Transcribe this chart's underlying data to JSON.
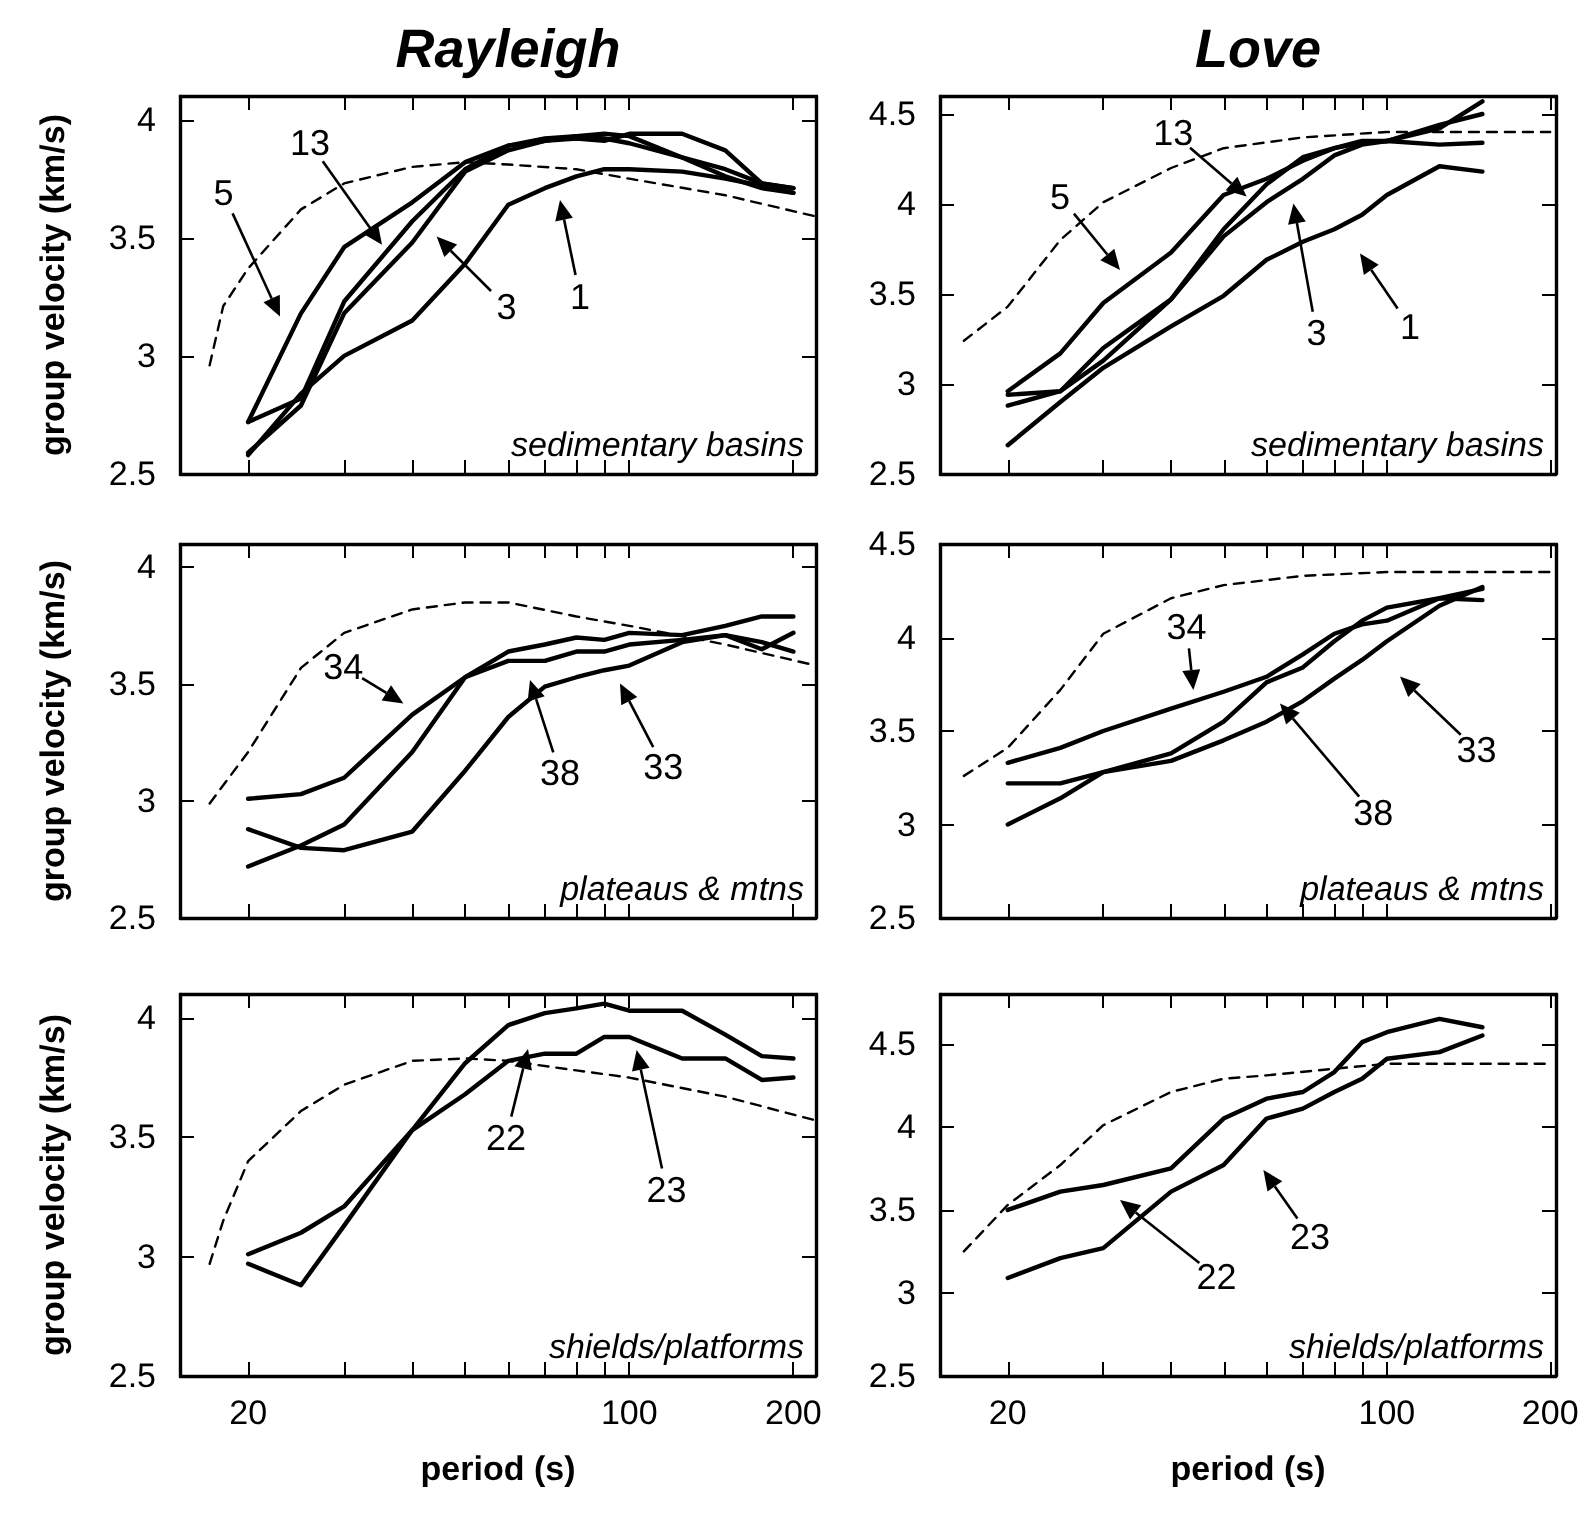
{
  "chart_data": [
    {
      "type": "line",
      "title": "Rayleigh",
      "ylabel": "group velocity (km/s)",
      "log": "x",
      "tick_labels": "y",
      "xlim": [
        15,
        220
      ],
      "ylim": [
        2.5,
        4.1
      ],
      "xticks": [
        {
          "value": 20,
          "label": null
        },
        {
          "value": 30,
          "label": null
        },
        {
          "value": 40,
          "label": null
        },
        {
          "value": 50,
          "label": null
        },
        {
          "value": 60,
          "label": null
        },
        {
          "value": 70,
          "label": null
        },
        {
          "value": 80,
          "label": null
        },
        {
          "value": 90,
          "label": null
        },
        {
          "value": 100,
          "label": null
        },
        {
          "value": 200,
          "label": null
        }
      ],
      "yticks": [
        2.5,
        3,
        3.5,
        4
      ],
      "x": [
        20,
        25,
        30,
        40,
        50,
        60,
        70,
        80,
        90,
        100,
        125,
        150,
        175,
        200
      ],
      "series": [
        {
          "color": "#000000",
          "values": [
            2.72,
            3.18,
            3.46,
            3.65,
            3.82,
            3.89,
            3.91,
            3.93,
            3.92,
            3.9,
            3.84,
            3.79,
            3.73,
            3.71
          ]
        },
        {
          "color": "#000000",
          "values": [
            2.72,
            2.82,
            3.23,
            3.57,
            3.79,
            3.89,
            3.92,
            3.93,
            3.94,
            3.93,
            3.84,
            3.76,
            3.71,
            3.69
          ]
        },
        {
          "color": "#000000",
          "values": [
            2.59,
            2.79,
            3.18,
            3.48,
            3.78,
            3.87,
            3.91,
            3.92,
            3.91,
            3.94,
            3.94,
            3.87,
            3.73,
            3.71
          ]
        },
        {
          "color": "#000000",
          "values": [
            2.58,
            2.84,
            3.0,
            3.15,
            3.39,
            3.64,
            3.71,
            3.76,
            3.79,
            3.79,
            3.78,
            3.75,
            3.72,
            3.69
          ]
        },
        {
          "color": "#000000",
          "line_style": "dashed",
          "x": [
            17,
            18,
            20,
            25,
            30,
            40,
            50,
            60,
            80,
            100,
            150,
            220
          ],
          "values": [
            2.96,
            3.21,
            3.37,
            3.62,
            3.73,
            3.8,
            3.82,
            3.81,
            3.79,
            3.75,
            3.68,
            3.59
          ]
        }
      ],
      "annotations": [
        "5",
        {
          "text": "13",
          "x": 35.2,
          "y": 3.47
        },
        "3",
        "1",
        "sedimentary basins"
      ]
    },
    {
      "type": "line",
      "title": "Love",
      "log": "x",
      "tick_labels": "y",
      "xlim": [
        15,
        205
      ],
      "ylim": [
        2.5,
        4.6
      ],
      "xticks": [
        {
          "value": 20,
          "label": null
        },
        {
          "value": 30,
          "label": null
        },
        {
          "value": 40,
          "label": null
        },
        {
          "value": 50,
          "label": null
        },
        {
          "value": 60,
          "label": null
        },
        {
          "value": 70,
          "label": null
        },
        {
          "value": 80,
          "label": null
        },
        {
          "value": 90,
          "label": null
        },
        {
          "value": 100,
          "label": null
        },
        {
          "value": 200,
          "label": null
        }
      ],
      "yticks": [
        2.5,
        3,
        3.5,
        4,
        4.5
      ],
      "x": [
        20,
        25,
        30,
        40,
        50,
        60,
        70,
        80,
        90,
        100,
        125,
        150
      ],
      "series": [
        {
          "color": "#000000",
          "values": [
            2.96,
            3.17,
            3.45,
            3.73,
            4.05,
            4.14,
            4.24,
            4.31,
            4.34,
            4.35,
            4.33,
            4.34
          ]
        },
        {
          "color": "#000000",
          "values": [
            2.94,
            2.96,
            3.2,
            3.47,
            3.86,
            4.11,
            4.26,
            4.31,
            4.35,
            4.35,
            4.42,
            4.57
          ]
        },
        {
          "color": "#000000",
          "values": [
            2.88,
            2.96,
            3.13,
            3.47,
            3.82,
            4.01,
            4.14,
            4.27,
            4.33,
            4.35,
            4.44,
            4.5
          ]
        },
        {
          "color": "#000000",
          "values": [
            2.66,
            2.9,
            3.09,
            3.32,
            3.49,
            3.69,
            3.79,
            3.86,
            3.94,
            4.05,
            4.21,
            4.18
          ]
        },
        {
          "color": "#000000",
          "line_style": "dashed",
          "x": [
            16.6,
            20,
            25,
            30,
            40,
            50,
            70,
            100,
            200
          ],
          "values": [
            3.24,
            3.43,
            3.8,
            4.01,
            4.2,
            4.31,
            4.37,
            4.4,
            4.4
          ]
        }
      ],
      "annotations": [
        "13",
        "5",
        "3",
        "1",
        "sedimentary basins"
      ]
    },
    {
      "type": "line",
      "ylabel": "group velocity (km/s)",
      "log": "x",
      "tick_labels": "y",
      "xlim": [
        15,
        220
      ],
      "ylim": [
        2.5,
        4.1
      ],
      "xticks": [
        {
          "value": 20,
          "label": null
        },
        {
          "value": 30,
          "label": null
        },
        {
          "value": 40,
          "label": null
        },
        {
          "value": 50,
          "label": null
        },
        {
          "value": 60,
          "label": null
        },
        {
          "value": 70,
          "label": null
        },
        {
          "value": 80,
          "label": null
        },
        {
          "value": 90,
          "label": null
        },
        {
          "value": 100,
          "label": null
        },
        {
          "value": 200,
          "label": null
        }
      ],
      "yticks": [
        2.5,
        3,
        3.5,
        4
      ],
      "x": [
        20,
        25,
        30,
        40,
        50,
        60,
        70,
        80,
        90,
        100,
        125,
        150,
        175,
        200
      ],
      "series": [
        {
          "color": "#000000",
          "values": [
            3.01,
            3.03,
            3.1,
            3.37,
            3.53,
            3.64,
            3.67,
            3.7,
            3.69,
            3.72,
            3.71,
            3.75,
            3.79,
            3.79
          ]
        },
        {
          "color": "#000000",
          "values": [
            2.72,
            2.81,
            2.9,
            3.21,
            3.53,
            3.6,
            3.6,
            3.64,
            3.64,
            3.67,
            3.69,
            3.71,
            3.68,
            3.64
          ]
        },
        {
          "color": "#000000",
          "values": [
            2.88,
            2.8,
            2.79,
            2.87,
            3.13,
            3.36,
            3.49,
            3.53,
            3.56,
            3.58,
            3.68,
            3.71,
            3.65,
            3.72
          ]
        },
        {
          "color": "#000000",
          "line_style": "dashed",
          "x": [
            17,
            20,
            25,
            30,
            40,
            50,
            60,
            80,
            100,
            150,
            220
          ],
          "values": [
            2.99,
            3.21,
            3.57,
            3.72,
            3.82,
            3.85,
            3.85,
            3.79,
            3.75,
            3.67,
            3.58
          ]
        }
      ],
      "annotations": [
        "34",
        "38",
        "33",
        "plateaus & mtns"
      ]
    },
    {
      "type": "line",
      "log": "x",
      "tick_labels": "y",
      "xlim": [
        15,
        205
      ],
      "ylim": [
        2.5,
        4.5
      ],
      "xticks": [
        {
          "value": 20,
          "label": null
        },
        {
          "value": 30,
          "label": null
        },
        {
          "value": 40,
          "label": null
        },
        {
          "value": 50,
          "label": null
        },
        {
          "value": 60,
          "label": null
        },
        {
          "value": 70,
          "label": null
        },
        {
          "value": 80,
          "label": null
        },
        {
          "value": 90,
          "label": null
        },
        {
          "value": 100,
          "label": null
        },
        {
          "value": 200,
          "label": null
        }
      ],
      "yticks": [
        2.5,
        3,
        3.5,
        4,
        4.5
      ],
      "x": [
        20,
        25,
        30,
        40,
        50,
        60,
        70,
        80,
        90,
        100,
        125,
        150
      ],
      "series": [
        {
          "color": "#000000",
          "values": [
            3.33,
            3.41,
            3.5,
            3.62,
            3.71,
            3.79,
            3.91,
            4.02,
            4.07,
            4.09,
            4.21,
            4.26
          ]
        },
        {
          "color": "#000000",
          "values": [
            3.22,
            3.22,
            3.28,
            3.38,
            3.55,
            3.76,
            3.84,
            3.98,
            4.09,
            4.16,
            4.21,
            4.2
          ]
        },
        {
          "color": "#000000",
          "values": [
            3.0,
            3.14,
            3.28,
            3.34,
            3.45,
            3.55,
            3.66,
            3.78,
            3.88,
            3.98,
            4.17,
            4.27
          ]
        },
        {
          "color": "#000000",
          "line_style": "dashed",
          "x": [
            16.6,
            20,
            25,
            30,
            40,
            50,
            70,
            100,
            200
          ],
          "values": [
            3.26,
            3.41,
            3.72,
            4.02,
            4.21,
            4.28,
            4.33,
            4.35,
            4.35
          ]
        }
      ],
      "annotations": [
        "34",
        "38",
        "33",
        "plateaus & mtns"
      ]
    },
    {
      "type": "line",
      "ylabel": "group velocity (km/s)",
      "xlabel": "period (s)",
      "log": "x",
      "xlim": [
        15,
        220
      ],
      "ylim": [
        2.5,
        4.1
      ],
      "xticks": [
        20,
        {
          "value": 30,
          "label": null
        },
        {
          "value": 40,
          "label": null
        },
        {
          "value": 50,
          "label": null
        },
        {
          "value": 60,
          "label": null
        },
        {
          "value": 70,
          "label": null
        },
        {
          "value": 80,
          "label": null
        },
        {
          "value": 90,
          "label": null
        },
        100,
        200
      ],
      "yticks": [
        2.5,
        3,
        3.5,
        4
      ],
      "x": [
        20,
        25,
        30,
        40,
        50,
        60,
        70,
        80,
        90,
        100,
        125,
        150,
        175,
        200
      ],
      "series": [
        {
          "color": "#000000",
          "values": [
            2.97,
            2.88,
            3.13,
            3.53,
            3.81,
            3.97,
            4.02,
            4.04,
            4.06,
            4.03,
            4.03,
            3.93,
            3.84,
            3.83
          ]
        },
        {
          "color": "#000000",
          "values": [
            3.01,
            3.1,
            3.21,
            3.53,
            3.68,
            3.82,
            3.85,
            3.85,
            3.92,
            3.92,
            3.83,
            3.83,
            3.74,
            3.75
          ]
        },
        {
          "color": "#000000",
          "line_style": "dashed",
          "x": [
            17,
            18,
            20,
            25,
            30,
            40,
            50,
            60,
            80,
            100,
            150,
            220
          ],
          "values": [
            2.97,
            3.15,
            3.4,
            3.61,
            3.72,
            3.82,
            3.83,
            3.82,
            3.78,
            3.75,
            3.67,
            3.57
          ]
        }
      ],
      "annotations": [
        {
          "text": "22",
          "x": 65.2,
          "y": 3.87
        },
        "23",
        "shields/platforms"
      ]
    },
    {
      "type": "line",
      "xlabel": "period (s)",
      "log": "x",
      "xlim": [
        15,
        205
      ],
      "ylim": [
        2.5,
        4.8
      ],
      "xticks": [
        20,
        {
          "value": 30,
          "label": null
        },
        {
          "value": 40,
          "label": null
        },
        {
          "value": 50,
          "label": null
        },
        {
          "value": 60,
          "label": null
        },
        {
          "value": 70,
          "label": null
        },
        {
          "value": 80,
          "label": null
        },
        {
          "value": 90,
          "label": null
        },
        100,
        200
      ],
      "yticks": [
        2.5,
        3,
        3.5,
        4,
        4.5
      ],
      "x": [
        20,
        25,
        30,
        40,
        50,
        60,
        70,
        80,
        90,
        100,
        125,
        150
      ],
      "series": [
        {
          "color": "#000000",
          "values": [
            3.5,
            3.61,
            3.65,
            3.75,
            4.05,
            4.17,
            4.21,
            4.33,
            4.51,
            4.57,
            4.65,
            4.6
          ]
        },
        {
          "color": "#000000",
          "values": [
            3.09,
            3.21,
            3.27,
            3.61,
            3.77,
            4.05,
            4.11,
            4.21,
            4.29,
            4.41,
            4.45,
            4.55
          ]
        },
        {
          "color": "#000000",
          "line_style": "dashed",
          "x": [
            16.6,
            20,
            25,
            30,
            40,
            50,
            60,
            80,
            100,
            200
          ],
          "values": [
            3.25,
            3.53,
            3.77,
            4.01,
            4.21,
            4.29,
            4.31,
            4.35,
            4.38,
            4.38
          ]
        }
      ],
      "annotations": [
        "22",
        "23",
        "shields/platforms"
      ]
    }
  ]
}
